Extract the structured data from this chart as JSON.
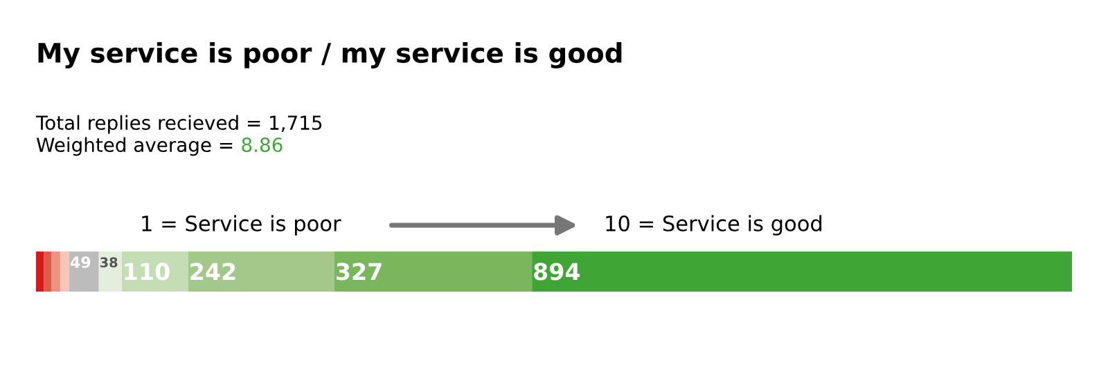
{
  "chart_data": {
    "type": "bar",
    "orientation": "horizontal",
    "stacked": true,
    "title": "My service is poor / my service is good",
    "annotations": [
      "Total replies recieved = 1,715",
      "Weighted average = 8.86",
      "1 = Service is poor",
      "10 = Service is good"
    ],
    "categories": [
      null
    ],
    "series": [
      {
        "color": "#d7191c",
        "values": [
          13
        ],
        "value_labels": [
          null
        ]
      },
      {
        "color": "#e05a48",
        "values": [
          13
        ],
        "value_labels": [
          null
        ]
      },
      {
        "color": "#ec9383",
        "values": [
          14
        ],
        "value_labels": [
          null
        ]
      },
      {
        "color": "#f6c7b9",
        "values": [
          15
        ],
        "value_labels": [
          null
        ]
      },
      {
        "color": "#bcbcbc",
        "values": [
          49
        ],
        "value_labels": [
          "49"
        ]
      },
      {
        "color": "#e3eedb",
        "values": [
          38
        ],
        "value_labels": [
          "38"
        ]
      },
      {
        "color": "#c5ddb5",
        "values": [
          110
        ],
        "value_labels": [
          "110"
        ]
      },
      {
        "color": "#a3c98a",
        "values": [
          242
        ],
        "value_labels": [
          "242"
        ]
      },
      {
        "color": "#7ab65c",
        "values": [
          327
        ],
        "value_labels": [
          "327"
        ]
      },
      {
        "color": "#3fa535",
        "values": [
          894
        ],
        "value_labels": [
          "894"
        ]
      }
    ],
    "legend": false
  }
}
